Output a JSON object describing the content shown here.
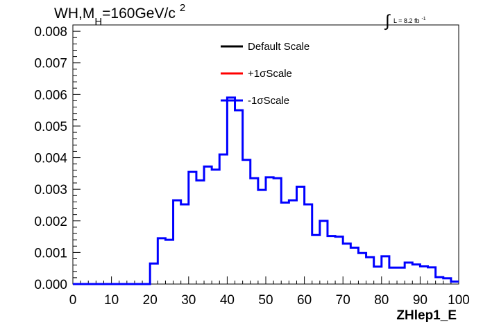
{
  "title": {
    "prefix": "WH,M",
    "subscript": "H",
    "rest": "=160GeV/c",
    "superscript": "2"
  },
  "lumi": {
    "symbol": "∫",
    "text": "L = 8.2 fb",
    "superscript": "-1"
  },
  "legend": [
    {
      "label": "Default Scale",
      "color": "#000000"
    },
    {
      "label": "+1σScale",
      "color": "#ff0000"
    },
    {
      "label": "-1σScale",
      "color": "#0000ff"
    }
  ],
  "chart_data": {
    "type": "line",
    "style": "step-histogram",
    "xlabel": "ZHlep1_E",
    "ylabel": "",
    "xlim": [
      0,
      100
    ],
    "ylim": [
      0,
      0.0082
    ],
    "x_ticks": [
      "0",
      "10",
      "20",
      "30",
      "40",
      "50",
      "60",
      "70",
      "80",
      "90",
      "100"
    ],
    "y_ticks": [
      "0.000",
      "0.001",
      "0.002",
      "0.003",
      "0.004",
      "0.005",
      "0.006",
      "0.007",
      "0.008"
    ],
    "bin_width": 2,
    "bin_edges_start": 0,
    "series": [
      {
        "name": "-1σScale",
        "color": "#0000ff",
        "values": [
          0,
          0,
          0,
          0,
          0,
          0,
          0,
          0,
          0,
          0,
          0.00065,
          0.00145,
          0.0014,
          0.00265,
          0.00252,
          0.00355,
          0.00328,
          0.00372,
          0.00362,
          0.0041,
          0.0059,
          0.0055,
          0.00393,
          0.00335,
          0.00298,
          0.00338,
          0.00335,
          0.00258,
          0.00265,
          0.00308,
          0.00252,
          0.00155,
          0.002,
          0.00152,
          0.0015,
          0.00128,
          0.00115,
          0.00098,
          0.00085,
          0.00055,
          0.00088,
          0.00052,
          0.00052,
          0.00068,
          0.00062,
          0.00056,
          0.00053,
          0.00022,
          0.00018,
          8e-05
        ]
      }
    ]
  }
}
